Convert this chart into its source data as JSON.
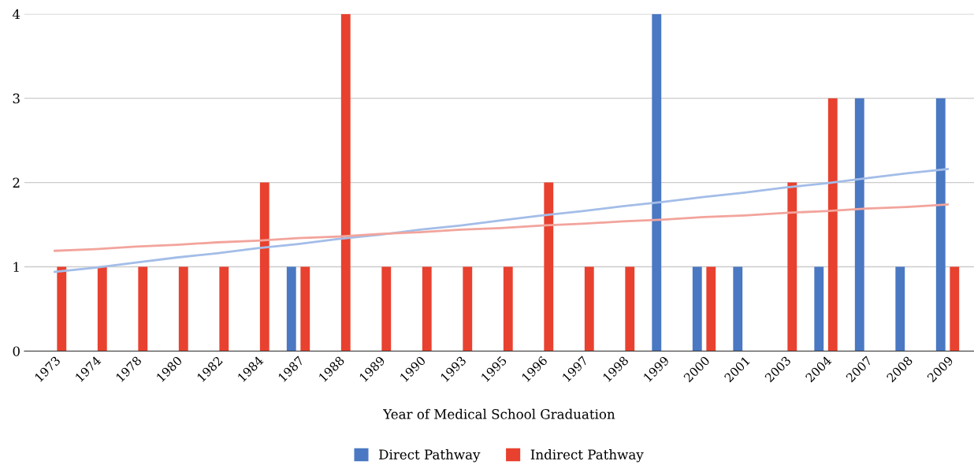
{
  "chart_data": {
    "type": "bar",
    "xlabel": "Year of Medical School Graduation",
    "categories": [
      "1973",
      "1974",
      "1978",
      "1980",
      "1982",
      "1984",
      "1987",
      "1988",
      "1989",
      "1990",
      "1993",
      "1995",
      "1996",
      "1997",
      "1998",
      "1999",
      "2000",
      "2001",
      "2003",
      "2004",
      "2007",
      "2008",
      "2009"
    ],
    "series": [
      {
        "name": "Direct Pathway",
        "color": "#4a78c2",
        "values": [
          0,
          0,
          0,
          0,
          0,
          0,
          1,
          0,
          0,
          0,
          0,
          0,
          0,
          0,
          0,
          4,
          1,
          1,
          0,
          1,
          3,
          1,
          3
        ]
      },
      {
        "name": "Indirect Pathway",
        "color": "#e8412f",
        "values": [
          1,
          1,
          1,
          1,
          1,
          2,
          1,
          4,
          1,
          1,
          1,
          1,
          2,
          1,
          1,
          0,
          1,
          0,
          2,
          3,
          0,
          0,
          1
        ]
      },
      {
        "type": "line",
        "color": "#a3bde8",
        "values": [
          0.94,
          0.99,
          1.05,
          1.11,
          1.16,
          1.22,
          1.27,
          1.33,
          1.38,
          1.44,
          1.49,
          1.55,
          1.61,
          1.66,
          1.72,
          1.77,
          1.83,
          1.88,
          1.94,
          1.99,
          2.05,
          2.11,
          2.16
        ]
      },
      {
        "type": "line",
        "color": "#f2a49c",
        "values": [
          1.19,
          1.21,
          1.24,
          1.26,
          1.29,
          1.31,
          1.34,
          1.36,
          1.39,
          1.41,
          1.44,
          1.46,
          1.49,
          1.51,
          1.54,
          1.56,
          1.59,
          1.61,
          1.64,
          1.66,
          1.69,
          1.71,
          1.74
        ]
      }
    ],
    "ylim": [
      0,
      4
    ],
    "yticks": [
      0,
      1,
      2,
      3,
      4
    ],
    "grid": "y",
    "legend": "bottom"
  }
}
